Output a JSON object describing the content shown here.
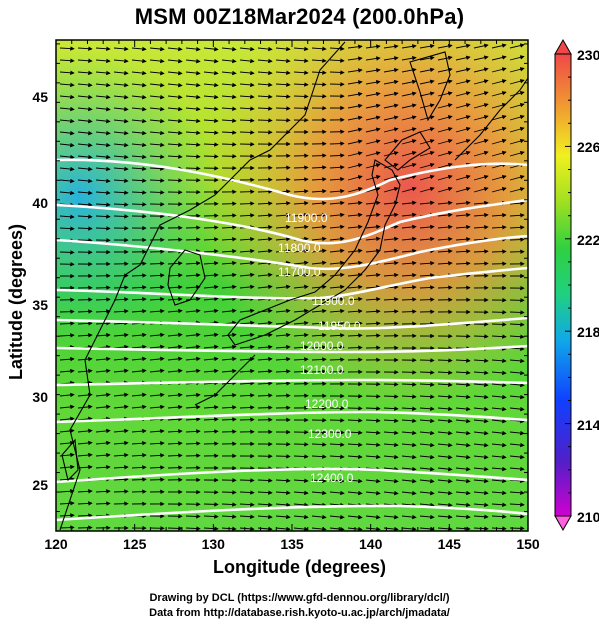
{
  "title": "MSM 00Z18Mar2024 (200.0hPa)",
  "axes": {
    "xlabel": "Longitude (degrees)",
    "ylabel": "Latitude  (degrees)",
    "xticks": [
      "120",
      "125",
      "130",
      "135",
      "140",
      "145",
      "150"
    ],
    "yticks": [
      "25",
      "30",
      "35",
      "40",
      "45"
    ],
    "xlim": [
      120,
      150
    ],
    "ylim": [
      22.4,
      47.6
    ]
  },
  "colorbar": {
    "min": 210,
    "max": 230,
    "ticks": [
      "230",
      "226",
      "222",
      "218",
      "214",
      "210"
    ]
  },
  "contours": {
    "color": "#ffffff",
    "labels": [
      "11900.0",
      "11800.0",
      "11700.0",
      "11900.0",
      "11950.0",
      "12000.0",
      "12100.0",
      "12200.0",
      "12300.0",
      "12400.0"
    ]
  },
  "credits": {
    "line1": "Drawing by DCL (https://www.gfd-dennou.org/library/dcl/)",
    "line2": "Data from http://database.rish.kyoto-u.ac.jp/arch/jmadata/"
  }
}
